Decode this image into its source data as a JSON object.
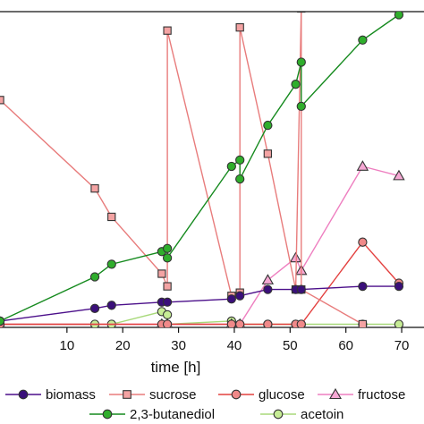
{
  "chart_data": {
    "type": "line",
    "xlabel": "time [h]",
    "ylabel": "",
    "xlim": [
      -2,
      74
    ],
    "ylim": [
      0,
      100
    ],
    "x_ticks": [
      10,
      20,
      30,
      40,
      50,
      60,
      70
    ],
    "grid": false,
    "legend_position": "bottom",
    "series": [
      {
        "name": "biomass",
        "color": "#4b0f8a",
        "fill": "#3a0f7a",
        "marker": "circle",
        "x": [
          -2,
          15,
          18,
          27,
          28,
          39.5,
          41,
          46,
          51,
          52,
          63,
          69.5
        ],
        "y": [
          2,
          6,
          7,
          8,
          8,
          9,
          10,
          12,
          12,
          12,
          13,
          13
        ]
      },
      {
        "name": "sucrose",
        "color": "#e87c7c",
        "fill": "#f4a3a3",
        "marker": "square",
        "x": [
          -2,
          15,
          18,
          27,
          28,
          28,
          39.5,
          41,
          41,
          46,
          51,
          52,
          52,
          63
        ],
        "y": [
          72,
          44,
          35,
          17,
          13,
          94,
          10,
          11,
          95,
          55,
          12,
          101,
          12,
          1
        ]
      },
      {
        "name": "glucose",
        "color": "#e3403f",
        "fill": "#f08989",
        "marker": "circle",
        "x": [
          -2,
          27,
          28,
          39.5,
          41,
          46,
          51,
          52,
          63,
          69.5
        ],
        "y": [
          1,
          1,
          1,
          1,
          1,
          1,
          1,
          1,
          27,
          14
        ]
      },
      {
        "name": "fructose",
        "color": "#ee7fc0",
        "fill": "#f6a8d4",
        "marker": "triangle",
        "x": [
          -2,
          27,
          28,
          39.5,
          41,
          46,
          51,
          52,
          63,
          69.5
        ],
        "y": [
          1,
          1,
          1,
          1,
          1,
          15,
          22,
          18,
          51,
          48
        ]
      },
      {
        "name": "2,3-butanediol",
        "color": "#158a1e",
        "fill": "#2fae2c",
        "marker": "circle",
        "x": [
          -2,
          15,
          18,
          27,
          28,
          28,
          39.5,
          41,
          41,
          46,
          51,
          52,
          52,
          63,
          69.5
        ],
        "y": [
          2,
          16,
          20,
          24,
          25,
          22,
          51,
          53,
          47,
          64,
          77,
          84,
          70,
          91,
          99
        ]
      },
      {
        "name": "acetoin",
        "color": "#a8d97a",
        "fill": "#c6ec95",
        "marker": "circle",
        "x": [
          -2,
          15,
          18,
          27,
          28,
          28,
          39.5,
          41,
          46,
          51,
          52,
          63,
          69.5
        ],
        "y": [
          1,
          1,
          1,
          5,
          4,
          1,
          2,
          1,
          1,
          1,
          1,
          1,
          1
        ]
      }
    ]
  }
}
